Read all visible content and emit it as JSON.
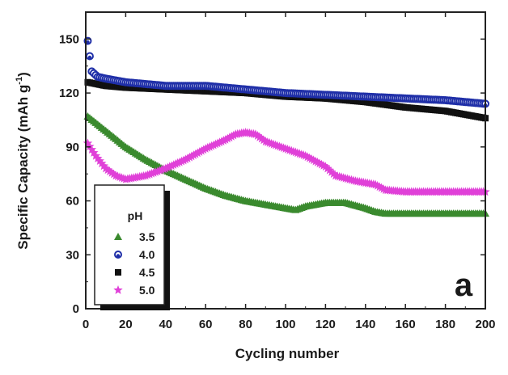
{
  "chart_data": {
    "type": "scatter",
    "panel_label": "a",
    "xlabel": "Cycling number",
    "ylabel": "Specific Capacity (mAh g",
    "ylabel_sup": "-1",
    "ylabel_end": ")",
    "xlim": [
      0,
      200
    ],
    "ylim": [
      0,
      165
    ],
    "x_ticks": [
      0,
      20,
      40,
      60,
      80,
      100,
      120,
      140,
      160,
      180,
      200
    ],
    "y_ticks": [
      0,
      30,
      60,
      90,
      120,
      150
    ],
    "grid": false,
    "legend_title": "pH",
    "legend_position": "bottom-left",
    "series": [
      {
        "name": "3.5",
        "marker": "triangle",
        "color": "#3a8a2e",
        "anchors": [
          [
            1,
            107
          ],
          [
            10,
            99
          ],
          [
            20,
            90
          ],
          [
            30,
            83
          ],
          [
            40,
            77
          ],
          [
            50,
            72
          ],
          [
            60,
            67
          ],
          [
            70,
            63
          ],
          [
            80,
            60
          ],
          [
            90,
            58
          ],
          [
            100,
            56
          ],
          [
            105,
            55
          ],
          [
            110,
            57
          ],
          [
            120,
            59
          ],
          [
            130,
            59
          ],
          [
            140,
            56
          ],
          [
            145,
            54
          ],
          [
            150,
            53
          ],
          [
            160,
            53
          ],
          [
            180,
            53
          ],
          [
            200,
            53
          ]
        ]
      },
      {
        "name": "4.0",
        "marker": "circle",
        "color": "#1f2fa8",
        "anchors": [
          [
            1,
            149
          ],
          [
            3,
            132
          ],
          [
            6,
            129
          ],
          [
            10,
            128
          ],
          [
            20,
            126
          ],
          [
            30,
            125
          ],
          [
            40,
            124
          ],
          [
            60,
            124
          ],
          [
            80,
            122
          ],
          [
            100,
            120
          ],
          [
            120,
            119
          ],
          [
            140,
            118
          ],
          [
            160,
            117
          ],
          [
            180,
            116
          ],
          [
            200,
            114
          ]
        ]
      },
      {
        "name": "4.5",
        "marker": "square",
        "color": "#111111",
        "anchors": [
          [
            1,
            126
          ],
          [
            10,
            124
          ],
          [
            20,
            123
          ],
          [
            40,
            122
          ],
          [
            60,
            121
          ],
          [
            80,
            120
          ],
          [
            100,
            118
          ],
          [
            120,
            117
          ],
          [
            140,
            115
          ],
          [
            160,
            112
          ],
          [
            180,
            110
          ],
          [
            200,
            106
          ]
        ]
      },
      {
        "name": "5.0",
        "marker": "star",
        "color": "#e040d8",
        "anchors": [
          [
            1,
            92
          ],
          [
            5,
            85
          ],
          [
            10,
            78
          ],
          [
            15,
            74
          ],
          [
            20,
            72
          ],
          [
            30,
            74
          ],
          [
            40,
            78
          ],
          [
            50,
            83
          ],
          [
            60,
            89
          ],
          [
            70,
            94
          ],
          [
            75,
            97
          ],
          [
            80,
            98
          ],
          [
            85,
            97
          ],
          [
            90,
            93
          ],
          [
            100,
            89
          ],
          [
            110,
            85
          ],
          [
            115,
            82
          ],
          [
            120,
            79
          ],
          [
            125,
            74
          ],
          [
            135,
            71
          ],
          [
            145,
            69
          ],
          [
            150,
            66
          ],
          [
            160,
            65
          ],
          [
            180,
            65
          ],
          [
            200,
            65
          ]
        ]
      }
    ]
  }
}
